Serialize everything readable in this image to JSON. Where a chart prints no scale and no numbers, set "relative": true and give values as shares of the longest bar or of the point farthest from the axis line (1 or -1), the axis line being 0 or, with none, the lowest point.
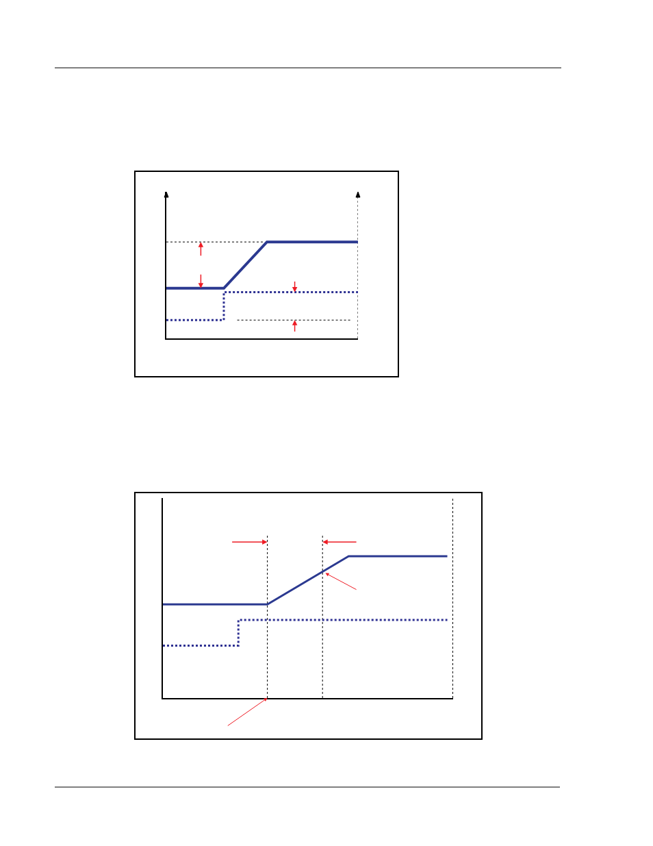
{
  "chart_data": [
    {
      "type": "line",
      "relative": true,
      "grid": false,
      "ref_lines": [
        {
          "axis": "y",
          "value": 1,
          "color": "#000000",
          "line_style": "dotted"
        },
        {
          "axis": "y",
          "value": 0.19,
          "color": "#000000",
          "line_style": "dotted"
        }
      ],
      "categories": [
        null,
        null,
        null,
        null,
        null,
        null,
        null,
        null,
        null,
        null,
        null,
        null,
        null,
        null,
        null,
        null,
        null,
        null,
        null,
        null,
        null,
        null,
        null,
        null,
        null,
        null,
        null,
        null,
        null,
        null,
        null,
        null,
        null,
        null,
        null,
        null,
        null,
        null,
        null,
        null,
        null
      ],
      "series": [
        {
          "color": "#2b3990",
          "line_style": "solid",
          "values": [
            0.52,
            null,
            null,
            null,
            null,
            null,
            null,
            null,
            null,
            null,
            null,
            null,
            0.52,
            null,
            null,
            null,
            null,
            null,
            null,
            null,
            null,
            1,
            null,
            null,
            null,
            null,
            null,
            null,
            null,
            null,
            null,
            null,
            null,
            null,
            null,
            null,
            null,
            null,
            null,
            null,
            1
          ]
        },
        {
          "type": "step",
          "color": "#2e3192",
          "line_style": "dotted",
          "values": [
            0.19,
            null,
            null,
            null,
            null,
            null,
            null,
            null,
            null,
            null,
            null,
            null,
            0.48,
            null,
            null,
            null,
            null,
            null,
            null,
            null,
            null,
            null,
            null,
            null,
            null,
            null,
            null,
            null,
            null,
            null,
            null,
            null,
            null,
            null,
            null,
            null,
            null,
            null,
            null,
            null,
            0.48
          ]
        }
      ]
    },
    {
      "type": "line",
      "relative": true,
      "grid": false,
      "categories": [
        null,
        null,
        null,
        null,
        null,
        null,
        null,
        null,
        null,
        null,
        null,
        null,
        null,
        null,
        null,
        null,
        null,
        null,
        null,
        null,
        null,
        null,
        null,
        null,
        null,
        null,
        null,
        null,
        null,
        null,
        null,
        null,
        null,
        null,
        null,
        null,
        null,
        null,
        null,
        null,
        null,
        null,
        null,
        null,
        null,
        null,
        null,
        null,
        null,
        null,
        null
      ],
      "series": [
        {
          "color": "#2b3990",
          "line_style": "solid",
          "values": [
            0.66,
            null,
            null,
            null,
            null,
            null,
            null,
            null,
            null,
            null,
            null,
            null,
            null,
            null,
            null,
            null,
            null,
            null,
            0.66,
            null,
            null,
            null,
            null,
            null,
            null,
            null,
            null,
            null,
            null,
            null,
            null,
            null,
            1,
            null,
            null,
            null,
            null,
            null,
            null,
            null,
            null,
            null,
            null,
            null,
            null,
            null,
            null,
            null,
            null,
            1,
            null
          ]
        },
        {
          "type": "step",
          "color": "#2e3192",
          "line_style": "dotted",
          "values": [
            0.37,
            null,
            null,
            null,
            null,
            null,
            null,
            null,
            null,
            null,
            null,
            null,
            null,
            0.55,
            null,
            null,
            null,
            null,
            null,
            null,
            null,
            null,
            null,
            null,
            null,
            null,
            null,
            null,
            null,
            null,
            null,
            null,
            null,
            null,
            null,
            null,
            null,
            null,
            null,
            null,
            null,
            null,
            null,
            null,
            null,
            null,
            null,
            null,
            null,
            0.55,
            null
          ]
        }
      ]
    }
  ]
}
